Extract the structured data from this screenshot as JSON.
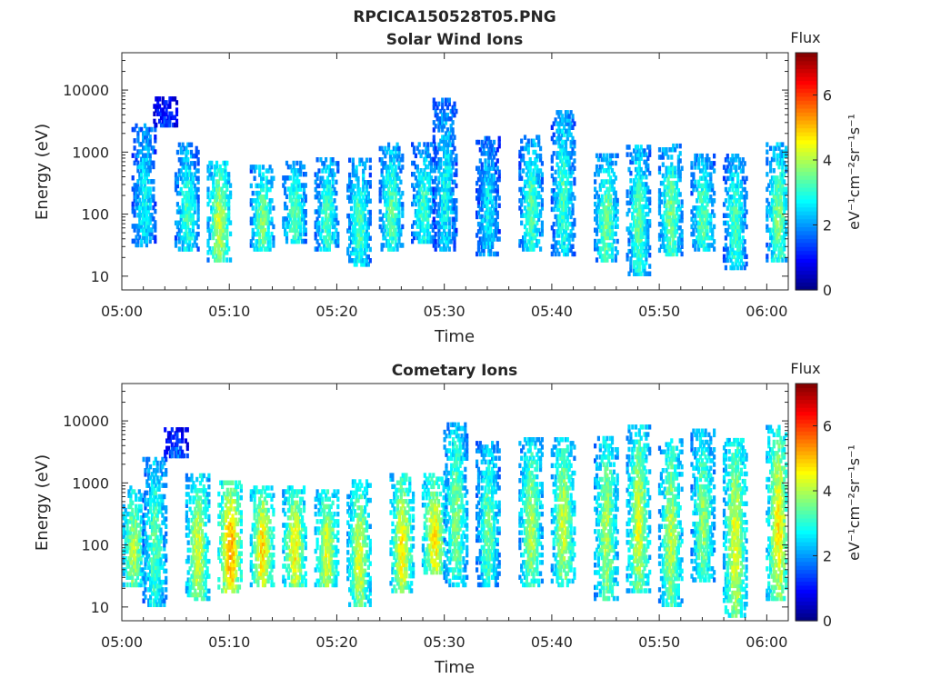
{
  "figure": {
    "title": "RPCICA150528T05.PNG"
  },
  "colorbar": {
    "title": "Flux",
    "label": "eV⁻¹cm⁻²sr⁻¹s⁻¹",
    "range": [
      0,
      7.3
    ],
    "ticks": [
      "0",
      "2",
      "4",
      "6"
    ],
    "colormap": "jet"
  },
  "chart_data": [
    {
      "type": "heatmap",
      "title": "Solar Wind Ions",
      "xlabel": "Time",
      "ylabel": "Energy (eV)",
      "x_ticks": [
        "05:00",
        "05:10",
        "05:20",
        "05:30",
        "05:40",
        "05:50",
        "06:00"
      ],
      "x_range": [
        "05:00",
        "06:02"
      ],
      "y_scale": "log",
      "y_ticks": [
        "10",
        "100",
        "1000",
        "10000"
      ],
      "y_range": [
        6,
        40000
      ],
      "clim": [
        0,
        7.3
      ],
      "grid": false,
      "bursts": [
        {
          "t": "05:02",
          "e_lo": 35,
          "e_hi": 3000,
          "flux": 2.8
        },
        {
          "t": "05:04",
          "e_lo": 3000,
          "e_hi": 8000,
          "flux": 1.5
        },
        {
          "t": "05:06",
          "e_lo": 30,
          "e_hi": 1500,
          "flux": 3.2
        },
        {
          "t": "05:09",
          "e_lo": 20,
          "e_hi": 800,
          "flux": 4.2
        },
        {
          "t": "05:13",
          "e_lo": 30,
          "e_hi": 700,
          "flux": 3.6
        },
        {
          "t": "05:16",
          "e_lo": 40,
          "e_hi": 800,
          "flux": 3.4
        },
        {
          "t": "05:19",
          "e_lo": 30,
          "e_hi": 900,
          "flux": 3.3
        },
        {
          "t": "05:22",
          "e_lo": 17,
          "e_hi": 900,
          "flux": 3.3
        },
        {
          "t": "05:25",
          "e_lo": 30,
          "e_hi": 1500,
          "flux": 3.4
        },
        {
          "t": "05:28",
          "e_lo": 40,
          "e_hi": 1500,
          "flux": 3.2
        },
        {
          "t": "05:30",
          "e_lo": 30,
          "e_hi": 8000,
          "flux": 2.8
        },
        {
          "t": "05:34",
          "e_lo": 25,
          "e_hi": 2000,
          "flux": 2.7
        },
        {
          "t": "05:38",
          "e_lo": 30,
          "e_hi": 2000,
          "flux": 3.3
        },
        {
          "t": "05:41",
          "e_lo": 25,
          "e_hi": 5000,
          "flux": 3.2
        },
        {
          "t": "05:45",
          "e_lo": 20,
          "e_hi": 1000,
          "flux": 3.6
        },
        {
          "t": "05:48",
          "e_lo": 12,
          "e_hi": 1500,
          "flux": 3.4
        },
        {
          "t": "05:51",
          "e_lo": 25,
          "e_hi": 1500,
          "flux": 3.6
        },
        {
          "t": "05:54",
          "e_lo": 30,
          "e_hi": 1000,
          "flux": 3.4
        },
        {
          "t": "05:57",
          "e_lo": 15,
          "e_hi": 1000,
          "flux": 3.3
        },
        {
          "t": "06:01",
          "e_lo": 20,
          "e_hi": 1500,
          "flux": 3.6
        }
      ]
    },
    {
      "type": "heatmap",
      "title": "Cometary Ions",
      "xlabel": "Time",
      "ylabel": "Energy (eV)",
      "x_ticks": [
        "05:00",
        "05:10",
        "05:20",
        "05:30",
        "05:40",
        "05:50",
        "06:00"
      ],
      "x_range": [
        "05:00",
        "06:02"
      ],
      "y_scale": "log",
      "y_ticks": [
        "10",
        "100",
        "1000",
        "10000"
      ],
      "y_range": [
        6,
        40000
      ],
      "clim": [
        0,
        7.3
      ],
      "grid": false,
      "bursts": [
        {
          "t": "05:01",
          "e_lo": 25,
          "e_hi": 1000,
          "flux": 4.0
        },
        {
          "t": "05:03",
          "e_lo": 12,
          "e_hi": 3000,
          "flux": 3.4
        },
        {
          "t": "05:05",
          "e_lo": 3000,
          "e_hi": 8000,
          "flux": 1.8
        },
        {
          "t": "05:07",
          "e_lo": 15,
          "e_hi": 1500,
          "flux": 4.3
        },
        {
          "t": "05:10",
          "e_lo": 20,
          "e_hi": 1200,
          "flux": 5.3
        },
        {
          "t": "05:13",
          "e_lo": 25,
          "e_hi": 1000,
          "flux": 4.8
        },
        {
          "t": "05:16",
          "e_lo": 25,
          "e_hi": 1000,
          "flux": 4.6
        },
        {
          "t": "05:19",
          "e_lo": 25,
          "e_hi": 900,
          "flux": 4.4
        },
        {
          "t": "05:22",
          "e_lo": 12,
          "e_hi": 1200,
          "flux": 4.3
        },
        {
          "t": "05:26",
          "e_lo": 20,
          "e_hi": 1500,
          "flux": 4.6
        },
        {
          "t": "05:29",
          "e_lo": 40,
          "e_hi": 1500,
          "flux": 4.7
        },
        {
          "t": "05:31",
          "e_lo": 25,
          "e_hi": 10000,
          "flux": 3.7
        },
        {
          "t": "05:34",
          "e_lo": 25,
          "e_hi": 5000,
          "flux": 3.5
        },
        {
          "t": "05:38",
          "e_lo": 25,
          "e_hi": 6000,
          "flux": 4.0
        },
        {
          "t": "05:41",
          "e_lo": 25,
          "e_hi": 6000,
          "flux": 4.2
        },
        {
          "t": "05:45",
          "e_lo": 15,
          "e_hi": 6000,
          "flux": 4.0
        },
        {
          "t": "05:48",
          "e_lo": 20,
          "e_hi": 9000,
          "flux": 4.3
        },
        {
          "t": "05:51",
          "e_lo": 12,
          "e_hi": 6000,
          "flux": 4.1
        },
        {
          "t": "05:54",
          "e_lo": 30,
          "e_hi": 8000,
          "flux": 3.8
        },
        {
          "t": "05:57",
          "e_lo": 7,
          "e_hi": 6000,
          "flux": 4.4
        },
        {
          "t": "06:01",
          "e_lo": 15,
          "e_hi": 9000,
          "flux": 4.6
        }
      ]
    }
  ]
}
